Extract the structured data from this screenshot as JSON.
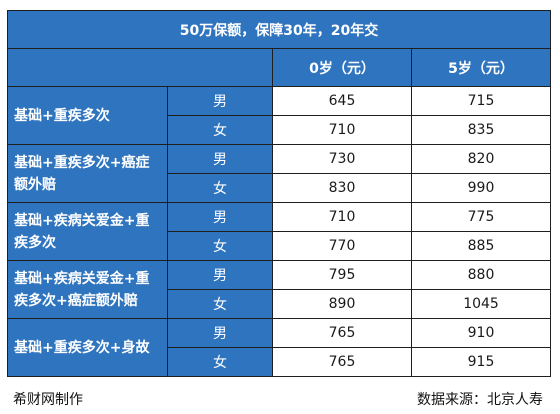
{
  "table": {
    "title": "50万保额，保障30年，20年交",
    "columns": [
      "0岁（元）",
      "5岁（元）"
    ],
    "groups": [
      {
        "plan": "基础+重疾多次",
        "rows": [
          {
            "gender": "男",
            "v0": "645",
            "v5": "715"
          },
          {
            "gender": "女",
            "v0": "710",
            "v5": "835"
          }
        ]
      },
      {
        "plan": "基础+重疾多次+癌症额外赔",
        "rows": [
          {
            "gender": "男",
            "v0": "730",
            "v5": "820"
          },
          {
            "gender": "女",
            "v0": "830",
            "v5": "990"
          }
        ]
      },
      {
        "plan": "基础+疾病关爱金+重疾多次",
        "rows": [
          {
            "gender": "男",
            "v0": "710",
            "v5": "775"
          },
          {
            "gender": "女",
            "v0": "770",
            "v5": "885"
          }
        ]
      },
      {
        "plan": "基础+疾病关爱金+重疾多次+癌症额外赔",
        "rows": [
          {
            "gender": "男",
            "v0": "795",
            "v5": "880"
          },
          {
            "gender": "女",
            "v0": "890",
            "v5": "1045"
          }
        ]
      },
      {
        "plan": "基础+重疾多次+身故",
        "rows": [
          {
            "gender": "男",
            "v0": "765",
            "v5": "910"
          },
          {
            "gender": "女",
            "v0": "765",
            "v5": "915"
          }
        ]
      }
    ]
  },
  "footer": {
    "left": "希财网制作",
    "right": "数据来源：北京人寿"
  },
  "colors": {
    "header_blue": "#2f74bf",
    "border": "#1f1f1f"
  }
}
